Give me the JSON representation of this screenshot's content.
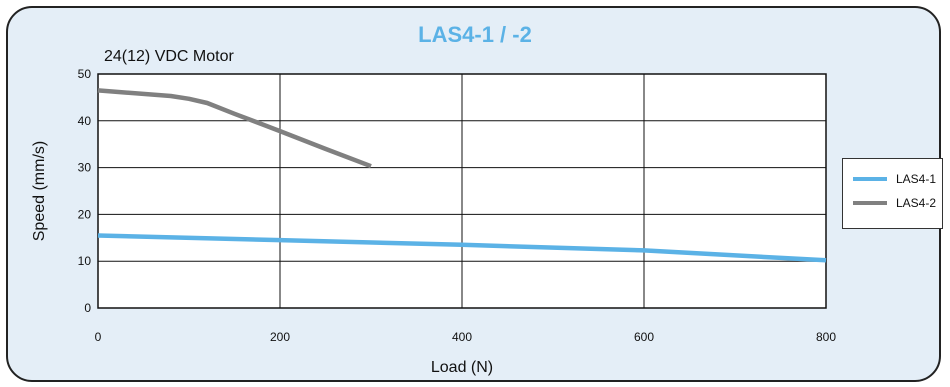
{
  "chart_data": {
    "type": "line",
    "title": "LAS4-1 / -2",
    "subtitle": "24(12) VDC Motor",
    "xlabel": "Load (N)",
    "ylabel": "Speed (mm/s)",
    "xlim": [
      0,
      800
    ],
    "ylim": [
      0,
      50
    ],
    "xticks": [
      0,
      200,
      400,
      600,
      800
    ],
    "yticks": [
      0,
      10,
      20,
      30,
      40,
      50
    ],
    "grid": true,
    "legend_position": "right",
    "series": [
      {
        "name": "LAS4-1",
        "color": "#5bb2e6",
        "x": [
          0,
          200,
          400,
          600,
          800
        ],
        "y": [
          15.5,
          14.5,
          13.5,
          12.3,
          10.2
        ]
      },
      {
        "name": "LAS4-2",
        "color": "#808080",
        "x": [
          0,
          80,
          100,
          120,
          150,
          200,
          250,
          300
        ],
        "y": [
          46.5,
          45.3,
          44.7,
          43.8,
          41.5,
          37.8,
          34.0,
          30.3
        ]
      }
    ]
  }
}
